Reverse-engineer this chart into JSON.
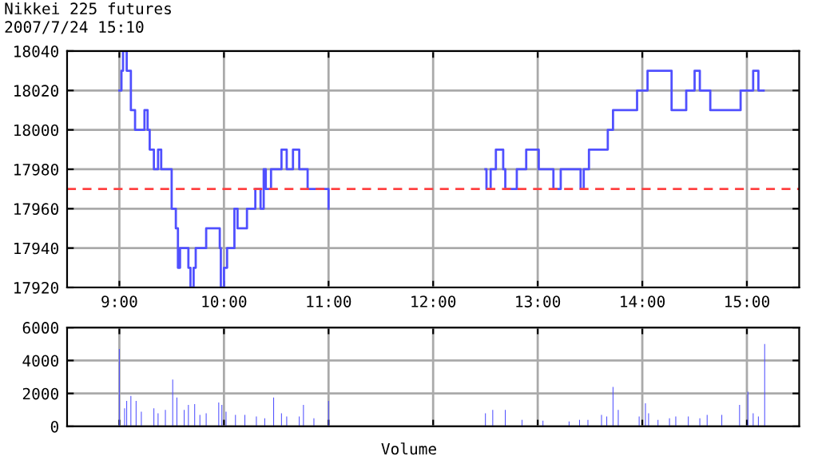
{
  "chart_data": [
    {
      "type": "step",
      "title": "Nikkei 225 futures",
      "subtitle": "2007/7/24 15:10",
      "color": "#5050ff",
      "x": [
        9.0,
        9.02,
        9.035,
        9.07,
        9.11,
        9.15,
        9.24,
        9.27,
        9.29,
        9.33,
        9.37,
        9.4,
        9.44,
        9.5,
        9.54,
        9.56,
        9.58,
        9.66,
        9.68,
        9.71,
        9.73,
        9.83,
        9.96,
        9.97,
        10.0,
        10.03,
        10.1,
        10.13,
        10.22,
        10.3,
        10.35,
        10.38,
        10.4,
        10.45,
        10.55,
        10.6,
        10.66,
        10.72,
        10.8,
        11.0
      ],
      "values": [
        18020,
        18030,
        18040,
        18030,
        18010,
        18000,
        18010,
        18000,
        17990,
        17980,
        17990,
        17980,
        17980,
        17960,
        17950,
        17930,
        17940,
        17930,
        17920,
        17930,
        17940,
        17950,
        17940,
        17920,
        17930,
        17940,
        17960,
        17950,
        17960,
        17970,
        17960,
        17980,
        17970,
        17980,
        17990,
        17980,
        17990,
        17980,
        17970,
        17960
      ],
      "series": [
        {
          "x": [
            12.5,
            12.51,
            12.55,
            12.6,
            12.67,
            12.69,
            12.8,
            12.89,
            13.01,
            13.15,
            13.22,
            13.41,
            13.44,
            13.49,
            13.67,
            13.72,
            13.95,
            14.05,
            14.28,
            14.42,
            14.5,
            14.55,
            14.65,
            14.94,
            15.06,
            15.11,
            15.16
          ],
          "values": [
            17980,
            17970,
            17980,
            17990,
            17980,
            17970,
            17980,
            17990,
            17980,
            17970,
            17980,
            17970,
            17980,
            17990,
            18000,
            18010,
            18020,
            18030,
            18010,
            18020,
            18030,
            18020,
            18010,
            18020,
            18030,
            18020,
            18020
          ],
          "color": "#5050ff"
        }
      ],
      "xlim": [
        8.5,
        15.5
      ],
      "xticks": [
        {
          "value": 9,
          "label": "9:00"
        },
        {
          "value": 10,
          "label": "10:00"
        },
        {
          "value": 11,
          "label": "11:00"
        },
        {
          "value": 12,
          "label": "12:00"
        },
        {
          "value": 13,
          "label": "13:00"
        },
        {
          "value": 14,
          "label": "14:00"
        },
        {
          "value": 15,
          "label": "15:00"
        }
      ],
      "ylim": [
        17920,
        18040
      ],
      "yticks": [
        17920,
        17940,
        17960,
        17980,
        18000,
        18020,
        18040
      ],
      "grid": true,
      "ref_lines": [
        {
          "axis": "y",
          "value": 17970,
          "color": "#ff4040",
          "line_style": "dashed"
        }
      ]
    },
    {
      "type": "bar",
      "color": "#5050ff",
      "annotations": [
        "Volume"
      ],
      "tick_labels": "y",
      "x": [
        9.0,
        9.05,
        9.07,
        9.11,
        9.16,
        9.21,
        9.33,
        9.37,
        9.44,
        9.51,
        9.55,
        9.62,
        9.66,
        9.72,
        9.77,
        9.83,
        9.95,
        9.98,
        10.02,
        10.11,
        10.2,
        10.31,
        10.39,
        10.475,
        10.55,
        10.6,
        10.72,
        10.76,
        10.86,
        11.0,
        12.5,
        12.57,
        12.69,
        12.85,
        13.05,
        13.3,
        13.4,
        13.48,
        13.61,
        13.66,
        13.72,
        13.77,
        13.97,
        14.03,
        14.06,
        14.15,
        14.26,
        14.32,
        14.44,
        14.55,
        14.62,
        14.76,
        14.93,
        15.01,
        15.06,
        15.11,
        15.17
      ],
      "values": [
        4700,
        1100,
        1550,
        1850,
        1550,
        900,
        1100,
        800,
        1000,
        2850,
        1750,
        1000,
        1300,
        1350,
        700,
        800,
        1450,
        1300,
        900,
        700,
        700,
        600,
        500,
        1750,
        800,
        600,
        600,
        1300,
        500,
        1550,
        800,
        1000,
        1000,
        400,
        350,
        300,
        400,
        400,
        700,
        600,
        2400,
        1000,
        600,
        1400,
        800,
        400,
        500,
        600,
        600,
        500,
        700,
        700,
        1300,
        2100,
        800,
        600,
        5000
      ],
      "xlim": [
        8.5,
        15.5
      ],
      "xticks": [
        9,
        10,
        11,
        12,
        13,
        14,
        15
      ],
      "ylim": [
        0,
        6000
      ],
      "yticks": [
        0,
        2000,
        4000,
        6000
      ],
      "grid": true
    }
  ]
}
